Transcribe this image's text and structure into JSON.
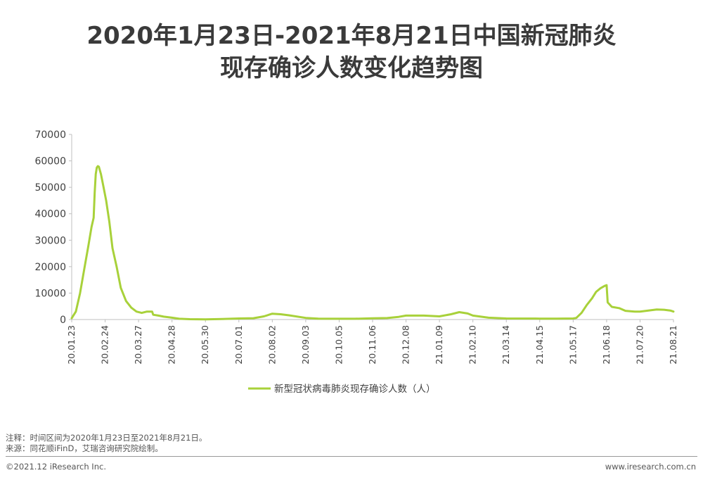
{
  "title_line1": "2020年1月23日-2021年8月21日中国新冠肺炎",
  "title_line2": "现存确诊人数变化趋势图",
  "note": "注释：时间区间为2020年1月23日至2021年8月21日。",
  "source": "来源：同花顺iFinD，艾瑞咨询研究院绘制。",
  "copyright": "©2021.12 iResearch Inc.",
  "website": "www.iresearch.com.cn",
  "colors": {
    "series": "#a8d13a",
    "axis": "#bfbfbf",
    "text": "#404040"
  },
  "chart_data": {
    "type": "line",
    "title": "2020年1月23日-2021年8月21日中国新冠肺炎现存确诊人数变化趋势图",
    "ylim": [
      0,
      70000
    ],
    "yticks": [
      "0",
      "10000",
      "20000",
      "30000",
      "40000",
      "50000",
      "60000",
      "70000"
    ],
    "xticks": [
      "20.01.23",
      "20.02.24",
      "20.03.27",
      "20.04.28",
      "20.05.30",
      "20.07.01",
      "20.08.02",
      "20.09.03",
      "20.10.05",
      "20.11.06",
      "20.12.08",
      "21.01.09",
      "21.02.10",
      "21.03.14",
      "21.04.15",
      "21.05.17",
      "21.06.18",
      "21.07.20",
      "21.08.21"
    ],
    "grid": false,
    "legend_position": "bottom",
    "series": [
      {
        "name": "新型冠状病毒肺炎现存确诊人数（人）",
        "points": [
          [
            "20.01.23",
            500
          ],
          [
            "20.01.27",
            3000
          ],
          [
            "20.01.31",
            10000
          ],
          [
            "20.02.04",
            19000
          ],
          [
            "20.02.08",
            28000
          ],
          [
            "20.02.11",
            35000
          ],
          [
            "20.02.13",
            38500
          ],
          [
            "20.02.14",
            48000
          ],
          [
            "20.02.15",
            55000
          ],
          [
            "20.02.16",
            57500
          ],
          [
            "20.02.17",
            58000
          ],
          [
            "20.02.18",
            57800
          ],
          [
            "20.02.20",
            55000
          ],
          [
            "20.02.22",
            51000
          ],
          [
            "20.02.25",
            45000
          ],
          [
            "20.02.28",
            37000
          ],
          [
            "20.03.02",
            27000
          ],
          [
            "20.03.06",
            20000
          ],
          [
            "20.03.10",
            12000
          ],
          [
            "20.03.15",
            7000
          ],
          [
            "20.03.20",
            4500
          ],
          [
            "20.03.25",
            3000
          ],
          [
            "20.03.30",
            2500
          ],
          [
            "20.04.04",
            3000
          ],
          [
            "20.04.09",
            3000
          ],
          [
            "20.04.10",
            1800
          ],
          [
            "20.04.15",
            1500
          ],
          [
            "20.04.20",
            1100
          ],
          [
            "20.04.28",
            700
          ],
          [
            "20.05.05",
            300
          ],
          [
            "20.05.15",
            120
          ],
          [
            "20.05.30",
            80
          ],
          [
            "20.06.15",
            200
          ],
          [
            "20.07.01",
            400
          ],
          [
            "20.07.15",
            500
          ],
          [
            "20.07.25",
            1200
          ],
          [
            "20.08.02",
            2200
          ],
          [
            "20.08.10",
            2000
          ],
          [
            "20.08.18",
            1600
          ],
          [
            "20.09.03",
            600
          ],
          [
            "20.09.15",
            350
          ],
          [
            "20.10.05",
            280
          ],
          [
            "20.10.20",
            300
          ],
          [
            "20.11.06",
            450
          ],
          [
            "20.11.20",
            550
          ],
          [
            "20.12.01",
            1000
          ],
          [
            "20.12.08",
            1500
          ],
          [
            "20.12.25",
            1500
          ],
          [
            "21.01.09",
            1200
          ],
          [
            "21.01.20",
            2000
          ],
          [
            "21.01.28",
            2800
          ],
          [
            "21.02.05",
            2300
          ],
          [
            "21.02.10",
            1500
          ],
          [
            "21.02.25",
            700
          ],
          [
            "21.03.14",
            400
          ],
          [
            "21.04.15",
            350
          ],
          [
            "21.05.01",
            350
          ],
          [
            "21.05.17",
            400
          ],
          [
            "21.05.20",
            600
          ],
          [
            "21.05.25",
            2500
          ],
          [
            "21.05.30",
            5500
          ],
          [
            "21.06.04",
            8000
          ],
          [
            "21.06.08",
            10500
          ],
          [
            "21.06.12",
            11800
          ],
          [
            "21.06.16",
            12700
          ],
          [
            "21.06.18",
            13000
          ],
          [
            "21.06.19",
            6500
          ],
          [
            "21.06.23",
            4800
          ],
          [
            "21.06.30",
            4300
          ],
          [
            "21.07.06",
            3300
          ],
          [
            "21.07.15",
            3000
          ],
          [
            "21.07.20",
            3000
          ],
          [
            "21.07.28",
            3400
          ],
          [
            "21.08.05",
            3800
          ],
          [
            "21.08.12",
            3700
          ],
          [
            "21.08.18",
            3400
          ],
          [
            "21.08.21",
            3000
          ]
        ]
      }
    ]
  }
}
